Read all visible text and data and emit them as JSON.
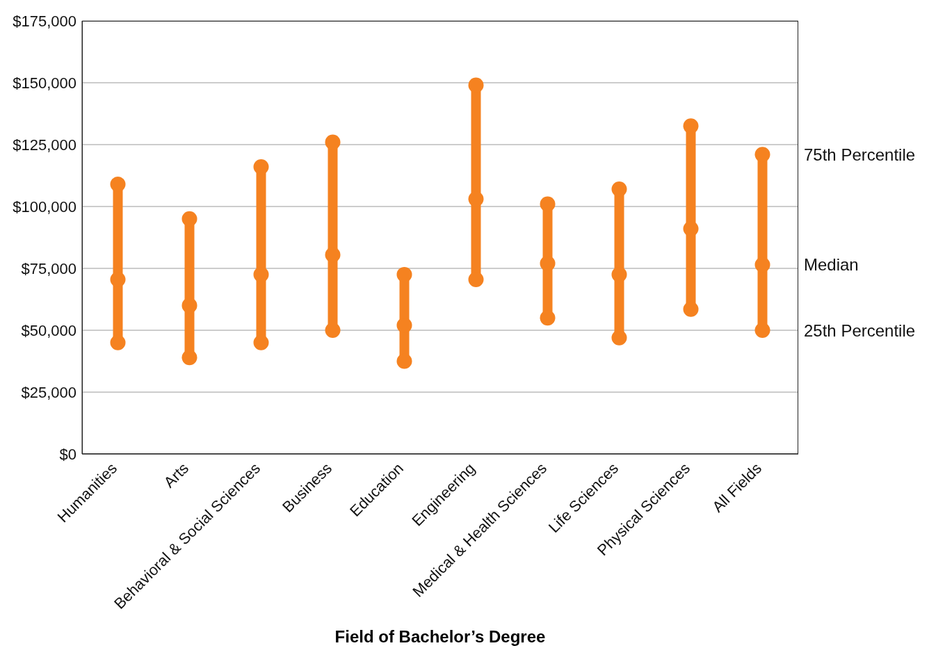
{
  "chart_data": {
    "type": "scatter",
    "xlabel": "Field of Bachelor’s Degree",
    "categories": [
      "Humanities",
      "Arts",
      "Behavioral & Social Sciences",
      "Business",
      "Education",
      "Engineering",
      "Medical & Health Sciences",
      "Life Sciences",
      "Physical Sciences",
      "All Fields"
    ],
    "series": [
      {
        "name": "75th Percentile",
        "color": "#f58220",
        "values": [
          109000,
          95000,
          116000,
          126000,
          72500,
          149000,
          101000,
          107000,
          132500,
          121000
        ]
      },
      {
        "name": "Median",
        "color": "#f58220",
        "values": [
          70500,
          60000,
          72500,
          80500,
          52000,
          103000,
          77000,
          72500,
          91000,
          76500
        ]
      },
      {
        "name": "25th Percentile",
        "color": "#f58220",
        "values": [
          45000,
          39000,
          45000,
          50000,
          37500,
          70500,
          55000,
          47000,
          58500,
          50000
        ]
      }
    ],
    "ylim": [
      0,
      175000
    ],
    "yticks": [
      {
        "value": 0,
        "label": "$0"
      },
      {
        "value": 25000,
        "label": "$25,000"
      },
      {
        "value": 50000,
        "label": "$50,000"
      },
      {
        "value": 75000,
        "label": "$75,000"
      },
      {
        "value": 100000,
        "label": "$100,000"
      },
      {
        "value": 125000,
        "label": "$125,000"
      },
      {
        "value": 150000,
        "label": "$150,000"
      },
      {
        "value": 175000,
        "label": "$175,000"
      }
    ],
    "grid": "y",
    "marker": "circle"
  }
}
